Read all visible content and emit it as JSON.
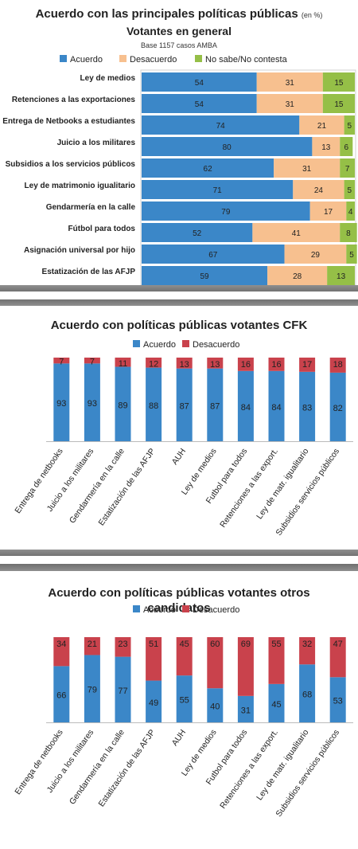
{
  "chart_data": [
    {
      "type": "bar",
      "orientation": "horizontal",
      "stacked": true,
      "title": "Acuerdo con las principales políticas públicas",
      "title_suffix": "(en %)",
      "subtitle": "Votantes en general",
      "note": "Base 1157 casos AMBA",
      "legend_position": "top",
      "categories": [
        "Ley de medios",
        "Retenciones a las exportaciones",
        "Entrega de Netbooks a estudiantes",
        "Juicio a los militares",
        "Subsidios a los servicios públicos",
        "Ley de matrimonio igualitario",
        "Gendarmería en la calle",
        "Fútbol para todos",
        "Asignación universal por hijo",
        "Estatización de las AFJP"
      ],
      "series": [
        {
          "name": "Acuerdo",
          "color": "#3b87c8",
          "values": [
            54,
            54,
            74,
            80,
            62,
            71,
            79,
            52,
            67,
            59
          ]
        },
        {
          "name": "Desacuerdo",
          "color": "#f7c08f",
          "values": [
            31,
            31,
            21,
            13,
            31,
            24,
            17,
            41,
            29,
            28
          ]
        },
        {
          "name": "No sabe/No contesta",
          "color": "#95bf47",
          "values": [
            15,
            15,
            5,
            6,
            7,
            5,
            4,
            8,
            5,
            13
          ]
        }
      ],
      "xlim": [
        0,
        100
      ]
    },
    {
      "type": "bar",
      "orientation": "vertical",
      "stacked": true,
      "title": "Acuerdo con políticas públicas votantes CFK",
      "legend_position": "top",
      "categories": [
        "Entrega de netbooks",
        "Juicio a los militares",
        "Gendarmería en la calle",
        "Estatización de las AFJP",
        "AUH",
        "Ley de medios",
        "Futbol para todos",
        "Retenciones a las export.",
        "Ley de matr. igualitario",
        "Subsidios servicios públicos"
      ],
      "series": [
        {
          "name": "Acuerdo",
          "color": "#3b87c8",
          "values": [
            93,
            93,
            89,
            88,
            87,
            87,
            84,
            84,
            83,
            82
          ]
        },
        {
          "name": "Desacuerdo",
          "color": "#c9424c",
          "values": [
            7,
            7,
            11,
            12,
            13,
            13,
            16,
            16,
            17,
            18
          ]
        }
      ],
      "ylim": [
        0,
        100
      ]
    },
    {
      "type": "bar",
      "orientation": "vertical",
      "stacked": true,
      "title": "Acuerdo con políticas públicas votantes otros candidatos",
      "legend_position": "top",
      "categories": [
        "Entrega de netbooks",
        "Juicio a los militares",
        "Gendarmería en la calle",
        "Estatización de las AFJP",
        "AUH",
        "Ley de medios",
        "Futbol para todos",
        "Retenciones a las export.",
        "Ley de matr. igualitario",
        "Subsidios servicios públicos"
      ],
      "series": [
        {
          "name": "Acuerdo",
          "color": "#3b87c8",
          "values": [
            66,
            79,
            77,
            49,
            55,
            40,
            31,
            45,
            68,
            53
          ]
        },
        {
          "name": "Desacuerdo",
          "color": "#c9424c",
          "values": [
            34,
            21,
            23,
            51,
            45,
            60,
            69,
            55,
            32,
            47
          ]
        }
      ],
      "ylim": [
        0,
        100
      ]
    }
  ]
}
